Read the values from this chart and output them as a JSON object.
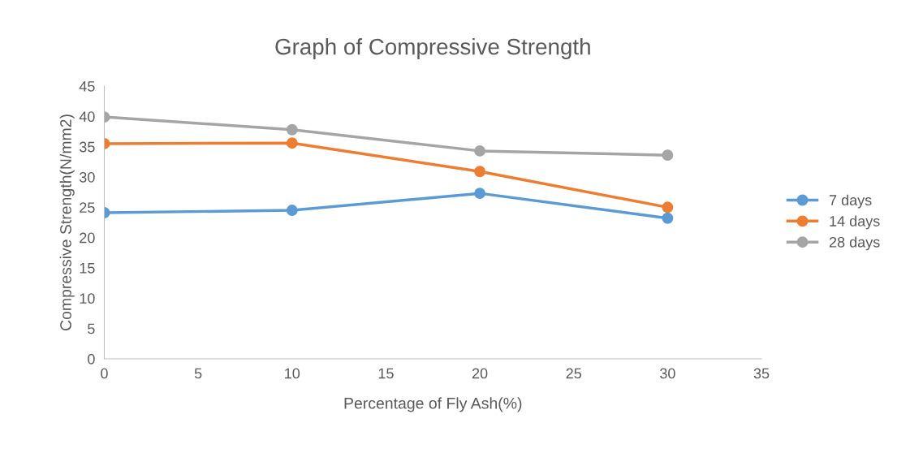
{
  "chart_data": {
    "type": "line",
    "title": "Graph of Compressive Strength",
    "xlabel": "Percentage of Fly Ash(%)",
    "ylabel": "Compressive Strength(N/mm2)",
    "x": [
      0,
      10,
      20,
      30
    ],
    "series": [
      {
        "name": "7 days",
        "color": "#5b9bd5",
        "values": [
          24.1,
          24.5,
          27.3,
          23.2
        ]
      },
      {
        "name": "14 days",
        "color": "#ed7d31",
        "values": [
          35.5,
          35.6,
          30.9,
          25.0
        ]
      },
      {
        "name": "28 days",
        "color": "#a5a5a5",
        "values": [
          39.9,
          37.8,
          34.3,
          33.6
        ]
      }
    ],
    "xlim": [
      0,
      35
    ],
    "xticks": [
      0,
      5,
      10,
      15,
      20,
      25,
      30,
      35
    ],
    "ylim": [
      0,
      45
    ],
    "yticks": [
      0,
      5,
      10,
      15,
      20,
      25,
      30,
      35,
      40,
      45
    ],
    "grid": false,
    "legend": "right",
    "marker": "circle",
    "line_style": "solid"
  }
}
